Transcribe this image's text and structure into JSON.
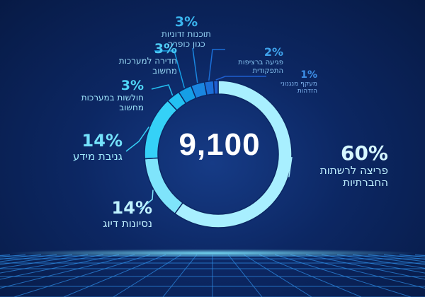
{
  "chart_data": {
    "type": "pie",
    "center_label": "9,100",
    "slices": [
      {
        "pct_label": "60%",
        "value": 60,
        "label_lines": [
          "פריצה לרשתות",
          "החברתיות"
        ],
        "color": "#a8efff"
      },
      {
        "pct_label": "14%",
        "value": 14,
        "label_lines": [
          "נסיונות דיוג"
        ],
        "color": "#7fe4fb"
      },
      {
        "pct_label": "14%",
        "value": 14,
        "label_lines": [
          "גניבת מידע"
        ],
        "color": "#35d1f7"
      },
      {
        "pct_label": "3%",
        "value": 3,
        "label_lines": [
          "חולשות במערכות",
          "מחשוב"
        ],
        "color": "#23c1f2"
      },
      {
        "pct_label": "3%",
        "value": 3,
        "label_lines": [
          "חדירה למערכות",
          "מחשוב"
        ],
        "color": "#159fe6"
      },
      {
        "pct_label": "3%",
        "value": 3,
        "label_lines": [
          "תוכנות זדוניות",
          "כגון כופרה"
        ],
        "color": "#1a86e0"
      },
      {
        "pct_label": "2%",
        "value": 2,
        "label_lines": [
          "פגיעה ברציפות",
          "התפקודית"
        ],
        "color": "#1b6fd8"
      },
      {
        "pct_label": "1%",
        "value": 1,
        "label_lines": [
          "מעקף מנגנוני",
          "הזדהות"
        ],
        "color": "#1f5fd0"
      }
    ]
  }
}
